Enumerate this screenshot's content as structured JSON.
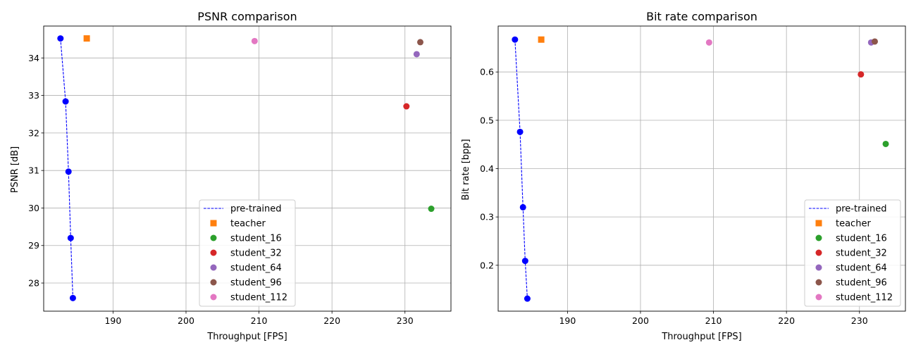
{
  "chart_data": [
    {
      "type": "scatter",
      "title": "PSNR comparison",
      "xlabel": "Throughput [FPS]",
      "ylabel": "PSNR [dB]",
      "xlim": [
        180.5,
        236.3
      ],
      "ylim": [
        27.25,
        34.85
      ],
      "xticks": [
        190,
        200,
        210,
        220,
        230
      ],
      "yticks": [
        28,
        29,
        30,
        31,
        32,
        33,
        34
      ],
      "grid": true,
      "legend_position": "lower center",
      "series": [
        {
          "name": "pre-trained",
          "style": "dashed-line-with-markers",
          "color": "#0000ff",
          "x": [
            182.8,
            183.5,
            183.9,
            184.2,
            184.5
          ],
          "y": [
            34.52,
            32.84,
            30.97,
            29.2,
            27.6
          ]
        },
        {
          "name": "teacher",
          "marker": "square",
          "color": "#ff7f0e",
          "x": [
            186.4
          ],
          "y": [
            34.52
          ]
        },
        {
          "name": "student_16",
          "marker": "circle",
          "color": "#2ca02c",
          "x": [
            233.6
          ],
          "y": [
            29.98
          ]
        },
        {
          "name": "student_32",
          "marker": "circle",
          "color": "#d62728",
          "x": [
            230.2
          ],
          "y": [
            32.71
          ]
        },
        {
          "name": "student_64",
          "marker": "circle",
          "color": "#9467bd",
          "x": [
            231.6
          ],
          "y": [
            34.1
          ]
        },
        {
          "name": "student_96",
          "marker": "circle",
          "color": "#8c564b",
          "x": [
            232.1
          ],
          "y": [
            34.42
          ]
        },
        {
          "name": "student_112",
          "marker": "circle",
          "color": "#e377c2",
          "x": [
            209.4
          ],
          "y": [
            34.45
          ]
        }
      ]
    },
    {
      "type": "scatter",
      "title": "Bit rate comparison",
      "xlabel": "Throughput [FPS]",
      "ylabel": "Bit rate [bpp]",
      "xlim": [
        180.5,
        236.3
      ],
      "ylim": [
        0.105,
        0.695
      ],
      "xticks": [
        190,
        200,
        210,
        220,
        230
      ],
      "yticks": [
        0.2,
        0.3,
        0.4,
        0.5,
        0.6
      ],
      "grid": true,
      "legend_position": "lower right",
      "series": [
        {
          "name": "pre-trained",
          "style": "dashed-line-with-markers",
          "color": "#0000ff",
          "x": [
            182.8,
            183.5,
            183.9,
            184.2,
            184.5
          ],
          "y": [
            0.667,
            0.476,
            0.32,
            0.209,
            0.131
          ]
        },
        {
          "name": "teacher",
          "marker": "square",
          "color": "#ff7f0e",
          "x": [
            186.4
          ],
          "y": [
            0.667
          ]
        },
        {
          "name": "student_16",
          "marker": "circle",
          "color": "#2ca02c",
          "x": [
            233.6
          ],
          "y": [
            0.451
          ]
        },
        {
          "name": "student_32",
          "marker": "circle",
          "color": "#d62728",
          "x": [
            230.2
          ],
          "y": [
            0.595
          ]
        },
        {
          "name": "student_64",
          "marker": "circle",
          "color": "#9467bd",
          "x": [
            231.6
          ],
          "y": [
            0.661
          ]
        },
        {
          "name": "student_96",
          "marker": "circle",
          "color": "#8c564b",
          "x": [
            232.1
          ],
          "y": [
            0.663
          ]
        },
        {
          "name": "student_112",
          "marker": "circle",
          "color": "#e377c2",
          "x": [
            209.4
          ],
          "y": [
            0.661
          ]
        }
      ]
    }
  ]
}
